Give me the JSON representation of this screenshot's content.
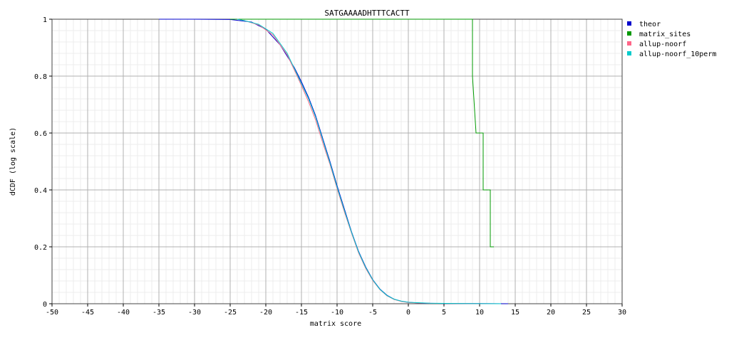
{
  "chart_data": {
    "type": "line",
    "title": "SATGAAAADHTTTCACTT",
    "xlabel": "matrix score",
    "ylabel": "dCDF (log scale)",
    "xlim": [
      -50,
      30
    ],
    "ylim": [
      0,
      1
    ],
    "x_ticks": [
      "-50",
      "-45",
      "-40",
      "-35",
      "-30",
      "-25",
      "-20",
      "-15",
      "-10",
      "-5",
      "0",
      "5",
      "10",
      "15",
      "20",
      "25",
      "30"
    ],
    "y_ticks": [
      "0",
      "0.2",
      "0.4",
      "0.6",
      "0.8",
      "1"
    ],
    "grid": true,
    "legend_position": "right",
    "series": [
      {
        "name": "theor",
        "color": "#0000cc",
        "step": false,
        "points": [
          [
            -35,
            1.0
          ],
          [
            -30,
            1.0
          ],
          [
            -25,
            0.999
          ],
          [
            -22,
            0.99
          ],
          [
            -20,
            0.965
          ],
          [
            -18,
            0.91
          ],
          [
            -16,
            0.83
          ],
          [
            -15,
            0.78
          ],
          [
            -14,
            0.725
          ],
          [
            -13,
            0.66
          ],
          [
            -12,
            0.58
          ],
          [
            -11,
            0.5
          ],
          [
            -10,
            0.415
          ],
          [
            -9,
            0.335
          ],
          [
            -8,
            0.255
          ],
          [
            -7,
            0.185
          ],
          [
            -6,
            0.13
          ],
          [
            -5,
            0.085
          ],
          [
            -4,
            0.052
          ],
          [
            -3,
            0.03
          ],
          [
            -2,
            0.016
          ],
          [
            -1,
            0.009
          ],
          [
            0,
            0.005
          ],
          [
            2,
            0.002
          ],
          [
            5,
            0.001
          ],
          [
            10,
            0.0005
          ],
          [
            14,
            0.0
          ]
        ]
      },
      {
        "name": "matrix_sites",
        "color": "#009900",
        "step": true,
        "points": [
          [
            -25,
            1.0
          ],
          [
            9,
            1.0
          ],
          [
            9,
            0.8
          ],
          [
            9.5,
            0.6
          ],
          [
            10.5,
            0.6
          ],
          [
            10.5,
            0.4
          ],
          [
            11.5,
            0.4
          ],
          [
            11.5,
            0.2
          ],
          [
            12,
            0.2
          ]
        ]
      },
      {
        "name": "allup-noorf",
        "color": "#ff6688",
        "step": false,
        "points": [
          [
            -24,
            1.0
          ],
          [
            -23,
            0.995
          ],
          [
            -21,
            0.98
          ],
          [
            -19,
            0.945
          ],
          [
            -17,
            0.875
          ],
          [
            -15.5,
            0.795
          ],
          [
            -14,
            0.71
          ],
          [
            -13,
            0.645
          ],
          [
            -12,
            0.565
          ],
          [
            -11,
            0.49
          ],
          [
            -10,
            0.405
          ],
          [
            -9,
            0.325
          ],
          [
            -8,
            0.25
          ],
          [
            -7,
            0.18
          ],
          [
            -6,
            0.125
          ],
          [
            -5,
            0.082
          ],
          [
            -4,
            0.05
          ],
          [
            -3,
            0.028
          ],
          [
            -2,
            0.015
          ],
          [
            -1,
            0.008
          ],
          [
            0,
            0.004
          ],
          [
            3,
            0.0015
          ],
          [
            8,
            0.0005
          ],
          [
            13,
            0.0
          ]
        ]
      },
      {
        "name": "allup-noorf_10perm",
        "color": "#00cccc",
        "step": false,
        "points": [
          [
            -24,
            1.0
          ],
          [
            -23,
            0.995
          ],
          [
            -21,
            0.982
          ],
          [
            -19,
            0.95
          ],
          [
            -17,
            0.88
          ],
          [
            -15.5,
            0.8
          ],
          [
            -14,
            0.72
          ],
          [
            -13,
            0.655
          ],
          [
            -12,
            0.575
          ],
          [
            -11,
            0.495
          ],
          [
            -10,
            0.41
          ],
          [
            -9,
            0.33
          ],
          [
            -8,
            0.253
          ],
          [
            -7,
            0.183
          ],
          [
            -6,
            0.128
          ],
          [
            -5,
            0.084
          ],
          [
            -4,
            0.051
          ],
          [
            -3,
            0.029
          ],
          [
            -2,
            0.016
          ],
          [
            -1,
            0.009
          ],
          [
            0,
            0.005
          ],
          [
            3,
            0.0018
          ],
          [
            8,
            0.0006
          ],
          [
            13,
            0.0
          ]
        ]
      }
    ]
  }
}
